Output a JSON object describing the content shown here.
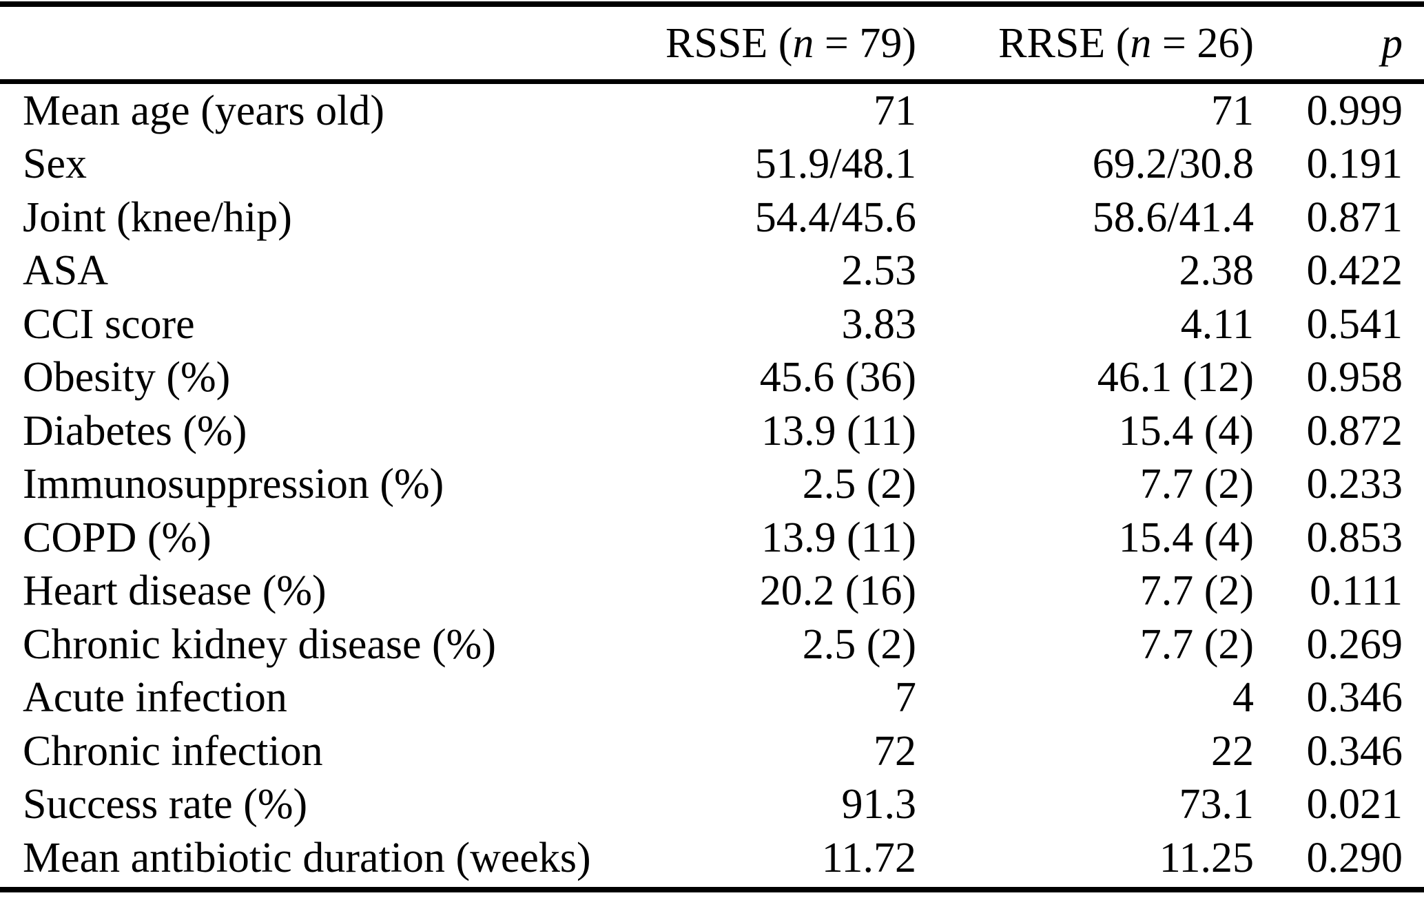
{
  "page": {
    "background_color": "#ffffff",
    "text_color": "#000000"
  },
  "table": {
    "corner_label": "",
    "headers": [
      {
        "pre": "RSSE (",
        "italic": "n",
        "post": " = 79)"
      },
      {
        "pre": "RRSE (",
        "italic": "n",
        "post": " = 26)"
      },
      {
        "pre": "",
        "italic": "p",
        "post": ""
      }
    ]
  },
  "chart_data": {
    "type": "table",
    "columns": [
      "",
      "RSSE (n = 79)",
      "RRSE (n = 26)",
      "p"
    ],
    "rows": [
      [
        "Mean age (years old)",
        "71",
        "71",
        "0.999"
      ],
      [
        "Sex",
        "51.9/48.1",
        "69.2/30.8",
        "0.191"
      ],
      [
        "Joint (knee/hip)",
        "54.4/45.6",
        "58.6/41.4",
        "0.871"
      ],
      [
        "ASA",
        "2.53",
        "2.38",
        "0.422"
      ],
      [
        "CCI score",
        "3.83",
        "4.11",
        "0.541"
      ],
      [
        "Obesity (%)",
        "45.6 (36)",
        "46.1 (12)",
        "0.958"
      ],
      [
        "Diabetes (%)",
        "13.9 (11)",
        "15.4 (4)",
        "0.872"
      ],
      [
        "Immunosuppression (%)",
        "2.5 (2)",
        "7.7 (2)",
        "0.233"
      ],
      [
        "COPD (%)",
        "13.9 (11)",
        "15.4 (4)",
        "0.853"
      ],
      [
        "Heart disease (%)",
        "20.2 (16)",
        "7.7 (2)",
        "0.111"
      ],
      [
        "Chronic kidney disease (%)",
        "2.5 (2)",
        "7.7 (2)",
        "0.269"
      ],
      [
        "Acute infection",
        "7",
        "4",
        "0.346"
      ],
      [
        "Chronic infection",
        "72",
        "22",
        "0.346"
      ],
      [
        "Success rate (%)",
        "91.3",
        "73.1",
        "0.021"
      ],
      [
        "Mean antibiotic duration (weeks)",
        "11.72",
        "11.25",
        "0.290"
      ]
    ]
  }
}
